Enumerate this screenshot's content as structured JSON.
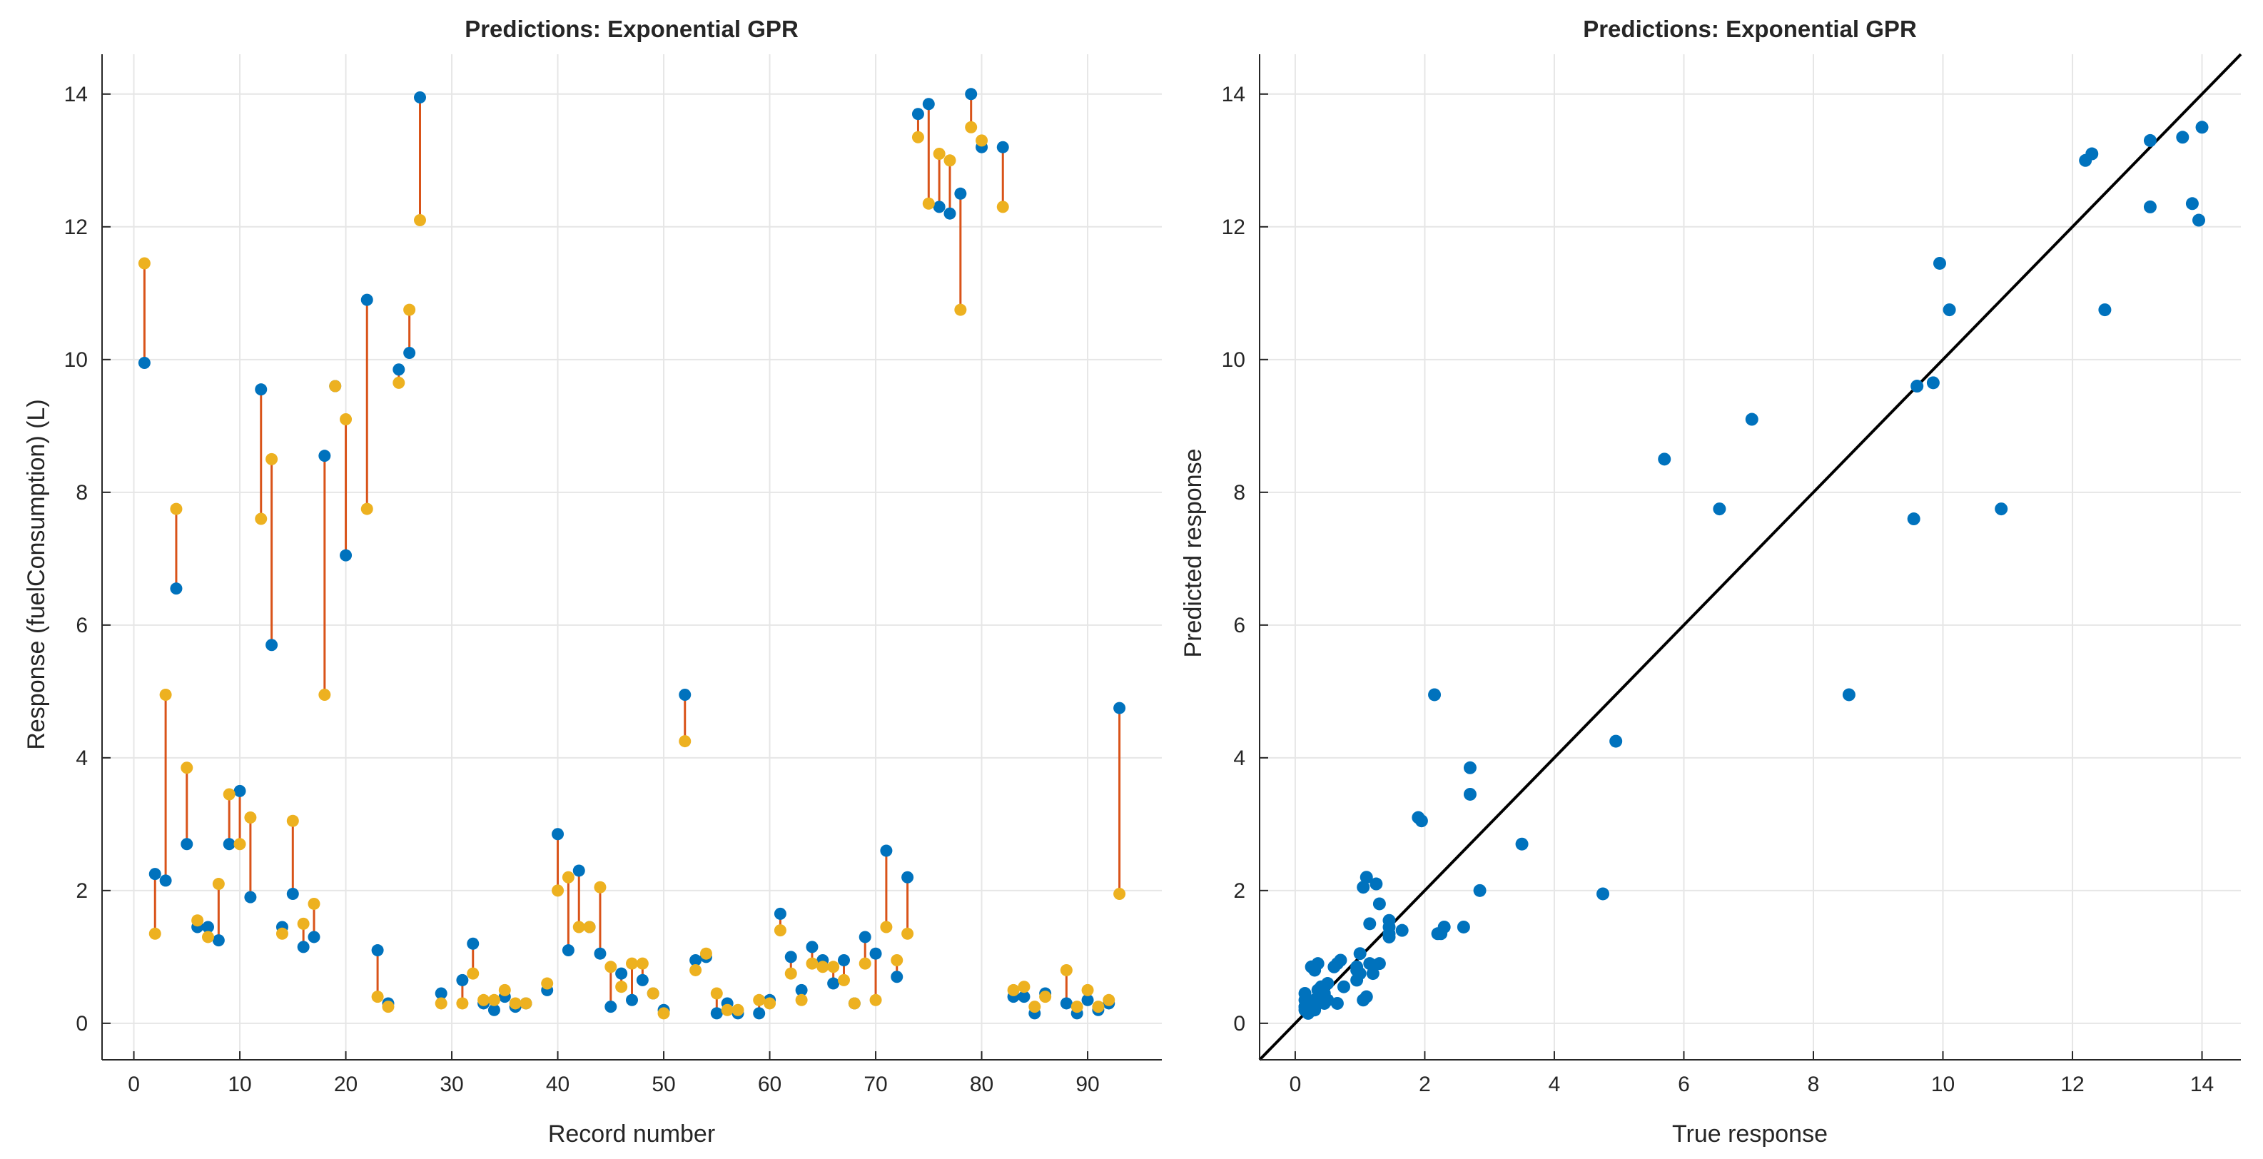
{
  "chart_data": [
    {
      "type": "scatter",
      "title": "Predictions: Exponential GPR",
      "xlabel": "Record number",
      "ylabel": "Response (fuelConsumption) (L)",
      "xlim": [
        -3,
        97
      ],
      "ylim": [
        -0.55,
        14.6
      ],
      "x_ticks": [
        0,
        10,
        20,
        30,
        40,
        50,
        60,
        70,
        80,
        90
      ],
      "y_ticks": [
        0,
        2,
        4,
        6,
        8,
        10,
        12,
        14
      ],
      "grid": true,
      "colors": {
        "true": "#0072BD",
        "predicted": "#EDB120",
        "error": "#D95319"
      },
      "series": [
        {
          "x": [
            1,
            2,
            3,
            4,
            5,
            6,
            7,
            8,
            9,
            10,
            11,
            12,
            13,
            14,
            15,
            16,
            17,
            18,
            19,
            20,
            22,
            23,
            24,
            25,
            26,
            27,
            29,
            31,
            32,
            33,
            34,
            35,
            36,
            37,
            39,
            40,
            41,
            42,
            43,
            44,
            45,
            46,
            47,
            48,
            49,
            50,
            52,
            53,
            54,
            55,
            56,
            57,
            59,
            60,
            61,
            62,
            63,
            64,
            65,
            66,
            67,
            68,
            69,
            70,
            71,
            72,
            73,
            74,
            75,
            76,
            77,
            78,
            79,
            80,
            82,
            83,
            84,
            85,
            86,
            88,
            89,
            90,
            91,
            92,
            93
          ],
          "values": [
            9.95,
            2.25,
            2.15,
            6.55,
            2.7,
            1.45,
            1.45,
            1.25,
            2.7,
            3.5,
            1.9,
            9.55,
            5.7,
            1.45,
            1.95,
            1.15,
            1.3,
            8.55,
            9.6,
            7.05,
            10.9,
            1.1,
            0.3,
            9.85,
            10.1,
            13.95,
            0.45,
            0.65,
            1.2,
            0.3,
            0.2,
            0.4,
            0.25,
            0.3,
            0.5,
            2.85,
            1.1,
            2.3,
            1.45,
            1.05,
            0.25,
            0.75,
            0.35,
            0.65,
            0.45,
            0.2,
            4.95,
            0.95,
            1.0,
            0.15,
            0.3,
            0.15,
            0.15,
            0.35,
            1.65,
            1.0,
            0.5,
            1.15,
            0.95,
            0.6,
            0.95,
            0.3,
            1.3,
            1.05,
            2.6,
            0.7,
            2.2,
            13.7,
            13.85,
            12.3,
            12.2,
            12.5,
            14.0,
            13.2,
            13.2,
            0.4,
            0.4,
            0.15,
            0.45,
            0.3,
            0.15,
            0.35,
            0.2,
            0.3,
            4.75
          ]
        },
        {
          "x": [
            1,
            2,
            3,
            4,
            5,
            6,
            7,
            8,
            9,
            10,
            11,
            12,
            13,
            14,
            15,
            16,
            17,
            18,
            19,
            20,
            22,
            23,
            24,
            25,
            26,
            27,
            29,
            31,
            32,
            33,
            34,
            35,
            36,
            37,
            39,
            40,
            41,
            42,
            43,
            44,
            45,
            46,
            47,
            48,
            49,
            50,
            52,
            53,
            54,
            55,
            56,
            57,
            59,
            60,
            61,
            62,
            63,
            64,
            65,
            66,
            67,
            68,
            69,
            70,
            71,
            72,
            73,
            74,
            75,
            76,
            77,
            78,
            79,
            80,
            82,
            83,
            84,
            85,
            86,
            88,
            89,
            90,
            91,
            92,
            93
          ],
          "values": [
            11.45,
            1.35,
            4.95,
            7.75,
            3.85,
            1.55,
            1.3,
            2.1,
            3.45,
            2.7,
            3.1,
            7.6,
            8.5,
            1.35,
            3.05,
            1.5,
            1.8,
            4.95,
            9.6,
            9.1,
            7.75,
            0.4,
            0.25,
            9.65,
            10.75,
            12.1,
            0.3,
            0.3,
            0.75,
            0.35,
            0.35,
            0.5,
            0.3,
            0.3,
            0.6,
            2.0,
            2.2,
            1.45,
            1.45,
            2.05,
            0.85,
            0.55,
            0.9,
            0.9,
            0.45,
            0.15,
            4.25,
            0.8,
            1.05,
            0.45,
            0.2,
            0.2,
            0.35,
            0.3,
            1.4,
            0.75,
            0.35,
            0.9,
            0.85,
            0.85,
            0.65,
            0.3,
            0.9,
            0.35,
            1.45,
            0.95,
            1.35,
            13.35,
            12.35,
            13.1,
            13.0,
            10.75,
            13.5,
            13.3,
            12.3,
            0.5,
            0.55,
            0.25,
            0.4,
            0.8,
            0.25,
            0.5,
            0.25,
            0.35,
            1.95
          ]
        }
      ]
    },
    {
      "type": "scatter",
      "title": "Predictions: Exponential GPR",
      "xlabel": "True response",
      "ylabel": "Predicted response",
      "xlim": [
        -0.55,
        14.6
      ],
      "ylim": [
        -0.55,
        14.6
      ],
      "x_ticks": [
        0,
        2,
        4,
        6,
        8,
        10,
        12,
        14
      ],
      "y_ticks": [
        0,
        2,
        4,
        6,
        8,
        10,
        12,
        14
      ],
      "grid": true,
      "colors": {
        "points": "#0072BD",
        "reference_line": "#000000"
      },
      "reference_line": [
        [
          -0.55,
          -0.55
        ],
        [
          14.6,
          14.6
        ]
      ],
      "points": {
        "x": [
          9.95,
          2.25,
          2.15,
          6.55,
          2.7,
          1.45,
          1.45,
          1.25,
          2.7,
          3.5,
          1.9,
          9.55,
          5.7,
          1.45,
          1.95,
          1.15,
          1.3,
          8.55,
          9.6,
          7.05,
          10.9,
          1.1,
          0.3,
          9.85,
          10.1,
          13.95,
          0.45,
          0.65,
          1.2,
          0.3,
          0.2,
          0.4,
          0.25,
          0.3,
          0.5,
          2.85,
          1.1,
          2.3,
          1.45,
          1.05,
          0.25,
          0.75,
          0.35,
          0.65,
          0.45,
          0.2,
          4.95,
          0.95,
          1.0,
          0.15,
          0.3,
          0.15,
          0.15,
          0.35,
          1.65,
          1.0,
          0.5,
          1.15,
          0.95,
          0.6,
          0.95,
          0.3,
          1.3,
          1.05,
          2.6,
          0.7,
          2.2,
          13.7,
          13.85,
          12.3,
          12.2,
          12.5,
          14.0,
          13.2,
          13.2,
          0.4,
          0.4,
          0.15,
          0.45,
          0.3,
          0.15,
          0.35,
          0.2,
          0.3,
          4.75
        ],
        "y": [
          11.45,
          1.35,
          4.95,
          7.75,
          3.85,
          1.55,
          1.3,
          2.1,
          3.45,
          2.7,
          3.1,
          7.6,
          8.5,
          1.35,
          3.05,
          1.5,
          1.8,
          4.95,
          9.6,
          9.1,
          7.75,
          0.4,
          0.25,
          9.65,
          10.75,
          12.1,
          0.3,
          0.3,
          0.75,
          0.35,
          0.35,
          0.5,
          0.3,
          0.3,
          0.6,
          2.0,
          2.2,
          1.45,
          1.45,
          2.05,
          0.85,
          0.55,
          0.9,
          0.9,
          0.45,
          0.15,
          4.25,
          0.8,
          1.05,
          0.45,
          0.2,
          0.2,
          0.35,
          0.3,
          1.4,
          0.75,
          0.35,
          0.9,
          0.85,
          0.85,
          0.65,
          0.3,
          0.9,
          0.35,
          1.45,
          0.95,
          1.35,
          13.35,
          12.35,
          13.1,
          13.0,
          10.75,
          13.5,
          13.3,
          12.3,
          0.5,
          0.55,
          0.25,
          0.4,
          0.8,
          0.25,
          0.5,
          0.25,
          0.35,
          1.95
        ]
      }
    }
  ]
}
